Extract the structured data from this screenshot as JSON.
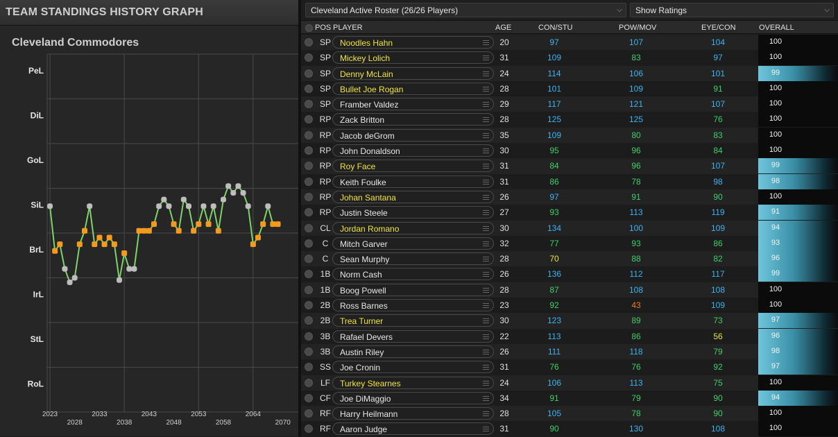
{
  "left_panel": {
    "title": "TEAM STANDINGS HISTORY GRAPH",
    "team": "Cleveland Commodores"
  },
  "chart_data": {
    "type": "line",
    "y_categories": [
      "PeL",
      "DiL",
      "GoL",
      "SiL",
      "BrL",
      "IrL",
      "StL",
      "RoL"
    ],
    "x_tick_labels_top": [
      "2023",
      "2033",
      "2043",
      "2053",
      "2064"
    ],
    "x_tick_labels_bottom": [
      "2028",
      "2038",
      "2048",
      "2058",
      "2070"
    ],
    "x_range": [
      2023,
      2072
    ],
    "y_note": "value = tier index (0=PeL top ... 7=RoL bottom), fractional positions within tier",
    "line_color": "#7fd36a",
    "marker_colors": {
      "gray": "#bdbdbd",
      "orange": "#f39b1e"
    },
    "series": [
      {
        "year": 2023,
        "v": 3.4,
        "c": "gray"
      },
      {
        "year": 2024,
        "v": 4.4,
        "c": "orange"
      },
      {
        "year": 2025,
        "v": 4.25,
        "c": "orange"
      },
      {
        "year": 2026,
        "v": 4.8,
        "c": "gray"
      },
      {
        "year": 2027,
        "v": 5.1,
        "c": "gray"
      },
      {
        "year": 2028,
        "v": 5.0,
        "c": "gray"
      },
      {
        "year": 2029,
        "v": 4.25,
        "c": "orange"
      },
      {
        "year": 2030,
        "v": 3.95,
        "c": "orange"
      },
      {
        "year": 2031,
        "v": 3.4,
        "c": "gray"
      },
      {
        "year": 2032,
        "v": 4.25,
        "c": "orange"
      },
      {
        "year": 2033,
        "v": 4.1,
        "c": "orange"
      },
      {
        "year": 2034,
        "v": 4.25,
        "c": "orange"
      },
      {
        "year": 2035,
        "v": 4.1,
        "c": "orange"
      },
      {
        "year": 2036,
        "v": 4.25,
        "c": "orange"
      },
      {
        "year": 2037,
        "v": 5.05,
        "c": "gray"
      },
      {
        "year": 2038,
        "v": 4.45,
        "c": "orange"
      },
      {
        "year": 2039,
        "v": 4.8,
        "c": "gray"
      },
      {
        "year": 2040,
        "v": 4.8,
        "c": "gray"
      },
      {
        "year": 2041,
        "v": 3.95,
        "c": "orange"
      },
      {
        "year": 2042,
        "v": 3.95,
        "c": "orange"
      },
      {
        "year": 2043,
        "v": 3.95,
        "c": "orange"
      },
      {
        "year": 2044,
        "v": 3.8,
        "c": "orange"
      },
      {
        "year": 2045,
        "v": 3.4,
        "c": "gray"
      },
      {
        "year": 2046,
        "v": 3.25,
        "c": "gray"
      },
      {
        "year": 2047,
        "v": 3.4,
        "c": "gray"
      },
      {
        "year": 2048,
        "v": 3.8,
        "c": "orange"
      },
      {
        "year": 2049,
        "v": 3.95,
        "c": "orange"
      },
      {
        "year": 2050,
        "v": 3.25,
        "c": "gray"
      },
      {
        "year": 2051,
        "v": 3.4,
        "c": "gray"
      },
      {
        "year": 2052,
        "v": 3.95,
        "c": "orange"
      },
      {
        "year": 2053,
        "v": 3.8,
        "c": "orange"
      },
      {
        "year": 2054,
        "v": 3.4,
        "c": "gray"
      },
      {
        "year": 2055,
        "v": 3.8,
        "c": "orange"
      },
      {
        "year": 2056,
        "v": 3.4,
        "c": "gray"
      },
      {
        "year": 2057,
        "v": 3.95,
        "c": "orange"
      },
      {
        "year": 2058,
        "v": 3.25,
        "c": "gray"
      },
      {
        "year": 2059,
        "v": 2.95,
        "c": "gray"
      },
      {
        "year": 2060,
        "v": 3.1,
        "c": "gray"
      },
      {
        "year": 2061,
        "v": 2.95,
        "c": "gray"
      },
      {
        "year": 2062,
        "v": 3.1,
        "c": "gray"
      },
      {
        "year": 2063,
        "v": 3.4,
        "c": "gray"
      },
      {
        "year": 2064,
        "v": 4.25,
        "c": "orange"
      },
      {
        "year": 2065,
        "v": 4.1,
        "c": "orange"
      },
      {
        "year": 2066,
        "v": 3.8,
        "c": "orange"
      },
      {
        "year": 2067,
        "v": 3.4,
        "c": "gray"
      },
      {
        "year": 2068,
        "v": 3.8,
        "c": "orange"
      },
      {
        "year": 2069,
        "v": 3.8,
        "c": "orange"
      }
    ]
  },
  "roster": {
    "dropdown_label": "Cleveland Active Roster (26/26 Players)",
    "view_label": "Show Ratings",
    "columns": {
      "pos": "POS",
      "player": "PLAYER",
      "age": "AGE",
      "r1": "CON/STU",
      "r2": "POW/MOV",
      "r3": "EYE/CON",
      "ovr": "OVERALL"
    },
    "colors": {
      "blue": "#3fb2f0",
      "green": "#3cd06a",
      "yellow": "#e7e43a",
      "orange": "#f07d2a",
      "star_name": "#f0e63a",
      "ovr_highlight": "#6ec6dc"
    },
    "rows": [
      {
        "pos": "SP",
        "name": "Noodles Hahn",
        "star": true,
        "age": "20",
        "r1": "97",
        "r1c": "blue",
        "r2": "107",
        "r2c": "blue",
        "r3": "104",
        "r3c": "blue",
        "ovr": "100",
        "hl": false
      },
      {
        "pos": "SP",
        "name": "Mickey Lolich",
        "star": true,
        "age": "31",
        "r1": "109",
        "r1c": "blue",
        "r2": "83",
        "r2c": "green",
        "r3": "97",
        "r3c": "blue",
        "ovr": "100",
        "hl": false
      },
      {
        "pos": "SP",
        "name": "Denny McLain",
        "star": true,
        "age": "24",
        "r1": "114",
        "r1c": "blue",
        "r2": "106",
        "r2c": "blue",
        "r3": "101",
        "r3c": "blue",
        "ovr": "99",
        "hl": true
      },
      {
        "pos": "SP",
        "name": "Bullet Joe Rogan",
        "star": true,
        "age": "28",
        "r1": "101",
        "r1c": "blue",
        "r2": "109",
        "r2c": "blue",
        "r3": "91",
        "r3c": "green",
        "ovr": "100",
        "hl": false
      },
      {
        "pos": "SP",
        "name": "Framber Valdez",
        "star": false,
        "age": "29",
        "r1": "117",
        "r1c": "blue",
        "r2": "121",
        "r2c": "blue",
        "r3": "107",
        "r3c": "blue",
        "ovr": "100",
        "hl": false
      },
      {
        "pos": "RP",
        "name": "Zack Britton",
        "star": false,
        "age": "28",
        "r1": "125",
        "r1c": "blue",
        "r2": "125",
        "r2c": "blue",
        "r3": "76",
        "r3c": "green",
        "ovr": "100",
        "hl": false
      },
      {
        "pos": "RP",
        "name": "Jacob deGrom",
        "star": false,
        "age": "35",
        "r1": "109",
        "r1c": "blue",
        "r2": "80",
        "r2c": "green",
        "r3": "83",
        "r3c": "green",
        "ovr": "100",
        "hl": false
      },
      {
        "pos": "RP",
        "name": "John Donaldson",
        "star": false,
        "age": "30",
        "r1": "95",
        "r1c": "green",
        "r2": "96",
        "r2c": "green",
        "r3": "84",
        "r3c": "green",
        "ovr": "100",
        "hl": false
      },
      {
        "pos": "RP",
        "name": "Roy Face",
        "star": true,
        "age": "31",
        "r1": "84",
        "r1c": "green",
        "r2": "96",
        "r2c": "green",
        "r3": "107",
        "r3c": "blue",
        "ovr": "99",
        "hl": true
      },
      {
        "pos": "RP",
        "name": "Keith Foulke",
        "star": false,
        "age": "31",
        "r1": "86",
        "r1c": "green",
        "r2": "78",
        "r2c": "green",
        "r3": "98",
        "r3c": "blue",
        "ovr": "98",
        "hl": true
      },
      {
        "pos": "RP",
        "name": "Johan Santana",
        "star": true,
        "age": "26",
        "r1": "97",
        "r1c": "blue",
        "r2": "91",
        "r2c": "green",
        "r3": "90",
        "r3c": "green",
        "ovr": "100",
        "hl": false
      },
      {
        "pos": "RP",
        "name": "Justin Steele",
        "star": false,
        "age": "27",
        "r1": "93",
        "r1c": "green",
        "r2": "113",
        "r2c": "blue",
        "r3": "119",
        "r3c": "blue",
        "ovr": "91",
        "hl": true
      },
      {
        "pos": "CL",
        "name": "Jordan Romano",
        "star": true,
        "age": "30",
        "r1": "134",
        "r1c": "blue",
        "r2": "100",
        "r2c": "blue",
        "r3": "109",
        "r3c": "blue",
        "ovr": "94",
        "hl": true
      },
      {
        "pos": "C",
        "name": "Mitch Garver",
        "star": false,
        "age": "32",
        "r1": "77",
        "r1c": "green",
        "r2": "93",
        "r2c": "green",
        "r3": "86",
        "r3c": "green",
        "ovr": "93",
        "hl": true
      },
      {
        "pos": "C",
        "name": "Sean Murphy",
        "star": false,
        "age": "28",
        "r1": "70",
        "r1c": "yellow",
        "r2": "88",
        "r2c": "green",
        "r3": "82",
        "r3c": "green",
        "ovr": "96",
        "hl": true
      },
      {
        "pos": "1B",
        "name": "Norm Cash",
        "star": false,
        "age": "26",
        "r1": "136",
        "r1c": "blue",
        "r2": "112",
        "r2c": "blue",
        "r3": "117",
        "r3c": "blue",
        "ovr": "99",
        "hl": true
      },
      {
        "pos": "1B",
        "name": "Boog Powell",
        "star": false,
        "age": "28",
        "r1": "87",
        "r1c": "green",
        "r2": "108",
        "r2c": "blue",
        "r3": "108",
        "r3c": "blue",
        "ovr": "100",
        "hl": false
      },
      {
        "pos": "2B",
        "name": "Ross Barnes",
        "star": false,
        "age": "23",
        "r1": "92",
        "r1c": "green",
        "r2": "43",
        "r2c": "orange",
        "r3": "109",
        "r3c": "blue",
        "ovr": "100",
        "hl": false
      },
      {
        "pos": "2B",
        "name": "Trea Turner",
        "star": true,
        "age": "30",
        "r1": "123",
        "r1c": "blue",
        "r2": "89",
        "r2c": "green",
        "r3": "73",
        "r3c": "green",
        "ovr": "97",
        "hl": true
      },
      {
        "pos": "3B",
        "name": "Rafael Devers",
        "star": false,
        "age": "22",
        "r1": "113",
        "r1c": "blue",
        "r2": "86",
        "r2c": "green",
        "r3": "56",
        "r3c": "yellow",
        "ovr": "96",
        "hl": true
      },
      {
        "pos": "3B",
        "name": "Austin Riley",
        "star": false,
        "age": "26",
        "r1": "111",
        "r1c": "blue",
        "r2": "118",
        "r2c": "blue",
        "r3": "79",
        "r3c": "green",
        "ovr": "98",
        "hl": true
      },
      {
        "pos": "SS",
        "name": "Joe Cronin",
        "star": false,
        "age": "31",
        "r1": "76",
        "r1c": "green",
        "r2": "76",
        "r2c": "green",
        "r3": "92",
        "r3c": "green",
        "ovr": "97",
        "hl": true
      },
      {
        "pos": "LF",
        "name": "Turkey Stearnes",
        "star": true,
        "age": "24",
        "r1": "106",
        "r1c": "blue",
        "r2": "113",
        "r2c": "blue",
        "r3": "75",
        "r3c": "green",
        "ovr": "100",
        "hl": false
      },
      {
        "pos": "CF",
        "name": "Joe DiMaggio",
        "star": false,
        "age": "34",
        "r1": "91",
        "r1c": "green",
        "r2": "79",
        "r2c": "green",
        "r3": "90",
        "r3c": "green",
        "ovr": "94",
        "hl": true
      },
      {
        "pos": "RF",
        "name": "Harry Heilmann",
        "star": false,
        "age": "28",
        "r1": "105",
        "r1c": "blue",
        "r2": "78",
        "r2c": "green",
        "r3": "90",
        "r3c": "green",
        "ovr": "100",
        "hl": false
      },
      {
        "pos": "RF",
        "name": "Aaron Judge",
        "star": false,
        "age": "31",
        "r1": "90",
        "r1c": "green",
        "r2": "130",
        "r2c": "blue",
        "r3": "108",
        "r3c": "blue",
        "ovr": "100",
        "hl": false
      }
    ]
  }
}
